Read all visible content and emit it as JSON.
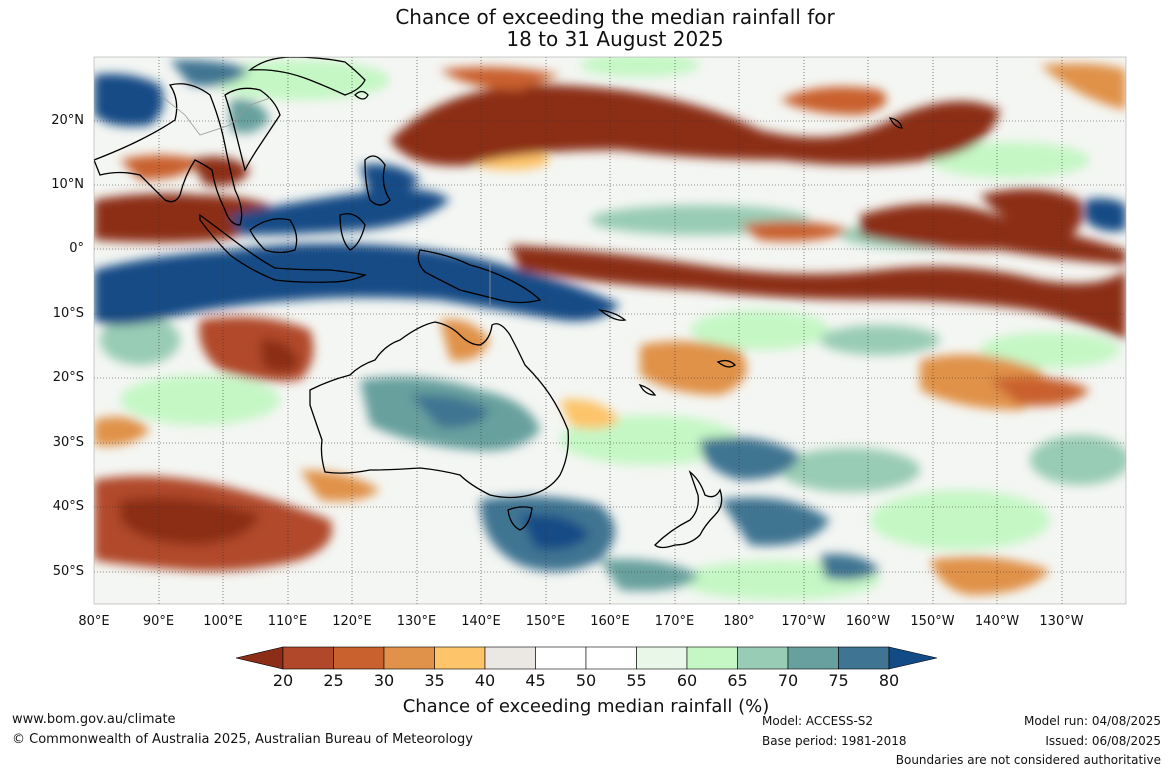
{
  "title": {
    "line1": "Chance of exceeding the median rainfall for",
    "line2": "18 to 31 August 2025"
  },
  "map": {
    "lat_labels": [
      "20°N",
      "10°N",
      "0°",
      "10°S",
      "20°S",
      "30°S",
      "40°S",
      "50°S"
    ],
    "lon_labels": [
      "80°E",
      "90°E",
      "100°E",
      "110°E",
      "120°E",
      "130°E",
      "140°E",
      "150°E",
      "160°E",
      "170°E",
      "180°",
      "170°W",
      "160°W",
      "150°W",
      "140°W",
      "130°W"
    ]
  },
  "colorbar": {
    "ticks": [
      "20",
      "25",
      "30",
      "35",
      "40",
      "45",
      "50",
      "55",
      "60",
      "65",
      "70",
      "75",
      "80"
    ],
    "colors": [
      "#8c2d18",
      "#b1482a",
      "#c9612f",
      "#e0924a",
      "#fdc46a",
      "#ebe8e3",
      "#ffffff",
      "#ffffff",
      "#e8f7e8",
      "#c5f7c5",
      "#99ccb4",
      "#67a09e",
      "#3f7592",
      "#124b86"
    ],
    "title": "Chance of exceeding median rainfall (%)"
  },
  "footer": {
    "url": "www.bom.gov.au/climate",
    "copyright": "© Commonwealth of Australia 2025, Australian Bureau of Meteorology",
    "model": "Model: ACCESS-S2",
    "base_period": "Base period: 1981-2018",
    "model_run": "Model run: 04/08/2025",
    "issued": "Issued: 06/08/2025",
    "disclaimer": "Boundaries are not considered authoritative"
  }
}
